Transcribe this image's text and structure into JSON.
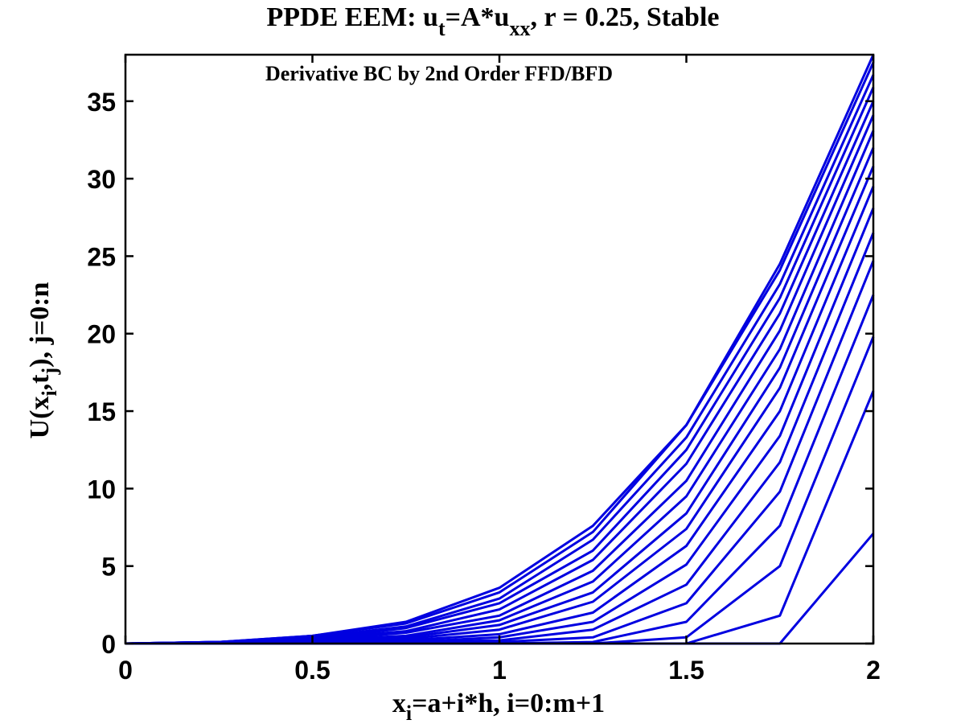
{
  "chart_data": {
    "type": "line",
    "title": {
      "prefix": "PPDE EEM: u",
      "sub1": "t",
      "mid": "=A*u",
      "sub2": "xx",
      "suffix": ", r = 0.25, Stable"
    },
    "annotation": "Derivative BC by 2nd Order FFD/BFD",
    "xlabel": {
      "pre": "x",
      "sub": "i",
      "post": "=a+i*h,  i=0:m+1"
    },
    "ylabel": {
      "p1": "U(x",
      "s1": "i",
      "p2": ",t",
      "s2": "j",
      "p3": "),  j=0:n"
    },
    "xlim": [
      0,
      2
    ],
    "ylim": [
      0,
      38
    ],
    "xticks": [
      0,
      0.5,
      1,
      1.5,
      2
    ],
    "xtick_labels": [
      "0",
      "0.5",
      "1",
      "1.5",
      "2"
    ],
    "yticks": [
      0,
      5,
      10,
      15,
      20,
      25,
      30,
      35
    ],
    "ytick_labels": [
      "0",
      "5",
      "10",
      "15",
      "20",
      "25",
      "30",
      "35"
    ],
    "grid": false,
    "line_color": "#0000e0",
    "x": [
      0,
      0.25,
      0.5,
      0.75,
      1.0,
      1.25,
      1.5,
      1.75,
      2.0
    ],
    "series": [
      {
        "values": [
          0,
          0,
          0,
          0,
          0,
          0,
          0,
          0,
          7.1
        ]
      },
      {
        "values": [
          0,
          0,
          0,
          0,
          0,
          0,
          0,
          1.8,
          16.3
        ]
      },
      {
        "values": [
          0,
          0,
          0,
          0,
          0,
          0,
          0.4,
          5.0,
          19.8
        ]
      },
      {
        "values": [
          0,
          0,
          0,
          0,
          0,
          0.1,
          1.4,
          7.6,
          22.5
        ]
      },
      {
        "values": [
          0,
          0,
          0,
          0,
          0.1,
          0.4,
          2.6,
          9.8,
          24.7
        ]
      },
      {
        "values": [
          0,
          0,
          0,
          0.1,
          0.2,
          0.9,
          3.8,
          11.7,
          26.5
        ]
      },
      {
        "values": [
          0,
          0,
          0,
          0.1,
          0.4,
          1.4,
          5.1,
          13.4,
          28.1
        ]
      },
      {
        "values": [
          0,
          0,
          0.1,
          0.2,
          0.6,
          2.0,
          6.3,
          15.0,
          29.5
        ]
      },
      {
        "values": [
          0,
          0,
          0.1,
          0.3,
          0.9,
          2.7,
          7.4,
          16.5,
          30.8
        ]
      },
      {
        "values": [
          0,
          0,
          0.1,
          0.4,
          1.2,
          3.3,
          8.4,
          17.8,
          32.0
        ]
      },
      {
        "values": [
          0,
          0,
          0.2,
          0.5,
          1.5,
          4.0,
          9.5,
          19.0,
          33.1
        ]
      },
      {
        "values": [
          0,
          0,
          0.2,
          0.7,
          1.8,
          4.7,
          10.5,
          20.2,
          34.1
        ]
      },
      {
        "values": [
          0,
          0.1,
          0.3,
          0.8,
          2.2,
          5.4,
          11.6,
          21.3,
          35.0
        ]
      },
      {
        "values": [
          0,
          0.1,
          0.3,
          1.0,
          2.6,
          6.0,
          12.5,
          22.3,
          35.9
        ]
      },
      {
        "values": [
          0,
          0.1,
          0.4,
          1.1,
          2.9,
          6.7,
          13.3,
          23.2,
          36.7
        ]
      },
      {
        "values": [
          0,
          0.1,
          0.5,
          1.3,
          3.3,
          7.2,
          14.1,
          24.1,
          37.5
        ]
      },
      {
        "values": [
          0,
          0.1,
          0.5,
          1.4,
          3.6,
          7.6,
          14.1,
          24.5,
          38.0
        ]
      }
    ]
  }
}
